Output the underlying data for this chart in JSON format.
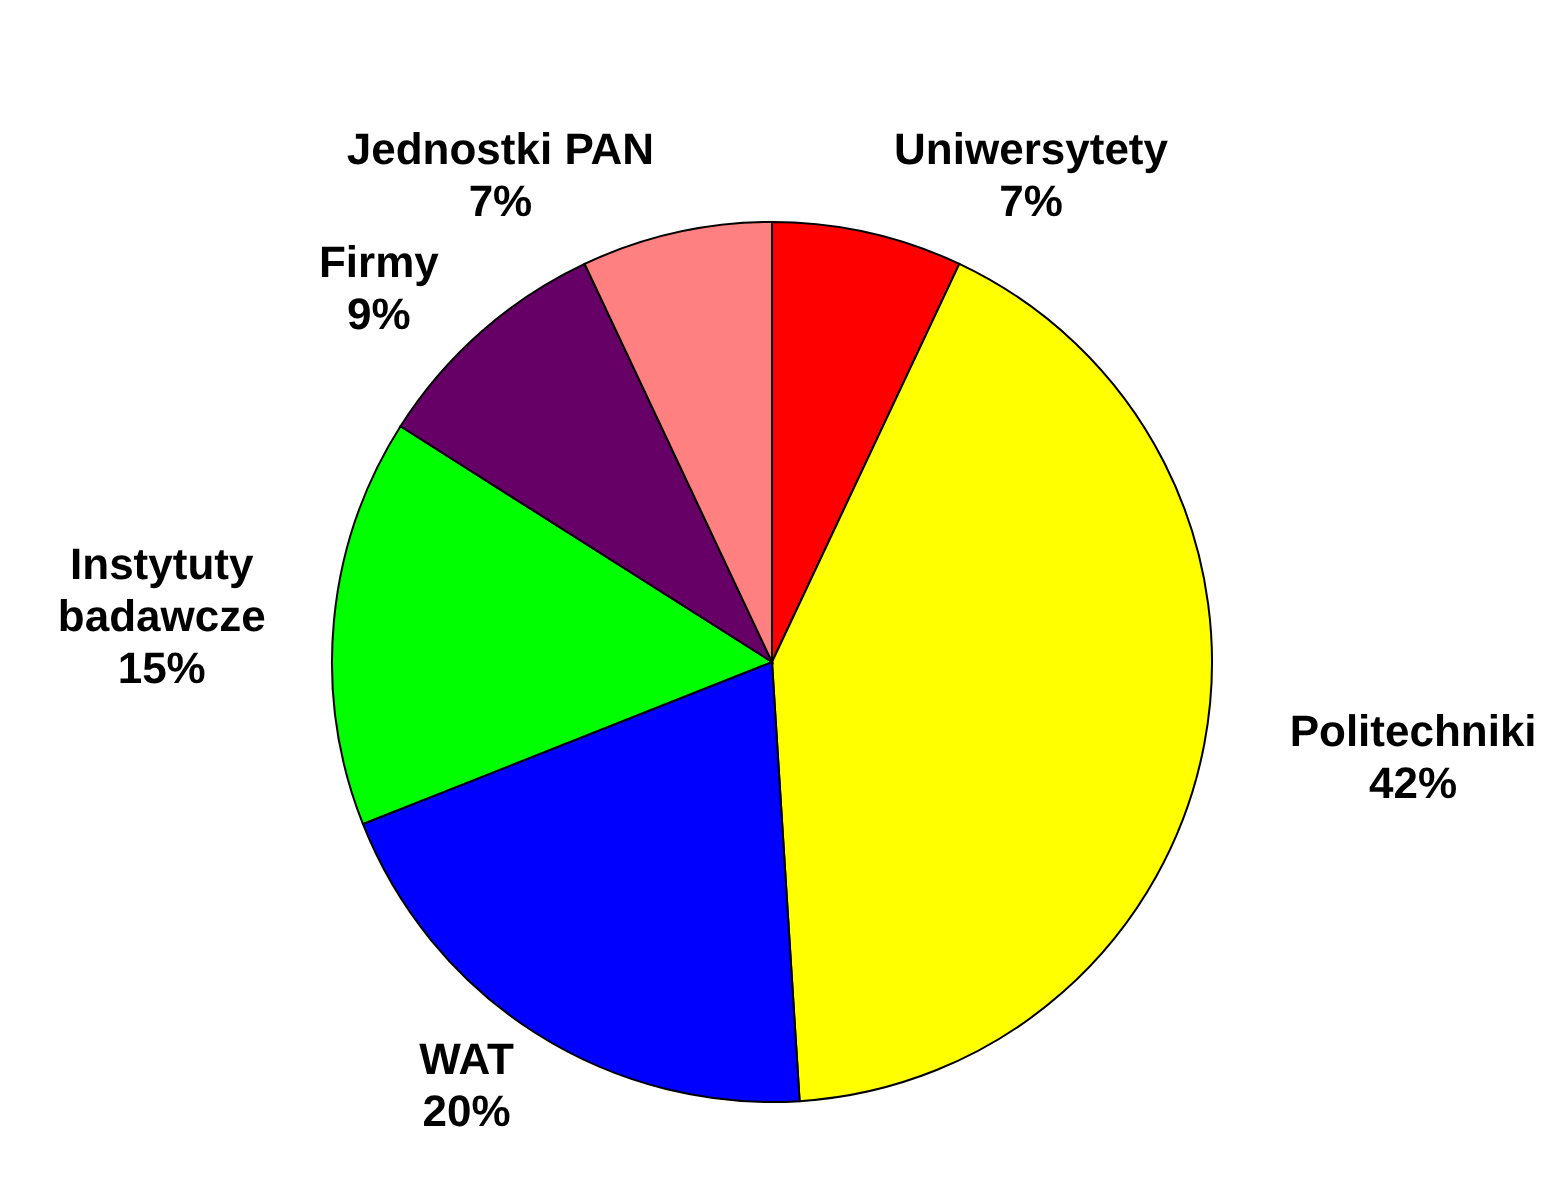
{
  "chart_data": {
    "type": "pie",
    "categories": [
      "Uniwersytety",
      "Politechniki",
      "WAT",
      "Instytuty badawcze",
      "Firmy",
      "Jednostki PAN"
    ],
    "values": [
      7,
      42,
      20,
      15,
      9,
      7
    ],
    "value_labels": [
      "7%",
      "42%",
      "20%",
      "15%",
      "9%",
      "7%"
    ],
    "colors": [
      "#ff0000",
      "#ffff00",
      "#0000ff",
      "#00ff00",
      "#660066",
      "#ff8080"
    ]
  }
}
